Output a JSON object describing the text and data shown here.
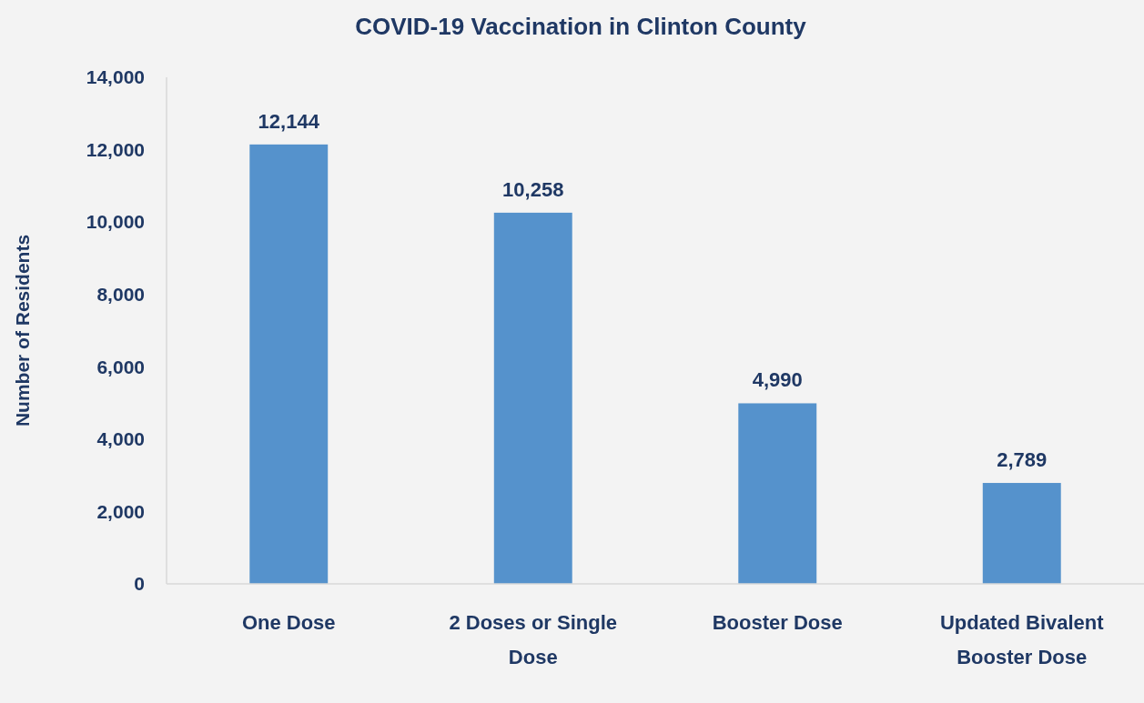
{
  "chart_data": {
    "type": "bar",
    "title": "COVID-19 Vaccination in Clinton County",
    "ylabel": "Number of Residents",
    "categories": [
      "One Dose",
      "2 Doses or Single Dose",
      "Booster Dose",
      "Updated Bivalent Booster Dose"
    ],
    "values": [
      12144,
      10258,
      4990,
      2789
    ],
    "value_labels": [
      "12,144",
      "10,258",
      "4,990",
      "2,789"
    ],
    "color": "#5592cc",
    "ylim": [
      0,
      14000
    ],
    "yticks": [
      0,
      {
        "value": 2000,
        "label": "2,000"
      },
      {
        "value": 4000,
        "label": "4,000"
      },
      {
        "value": 6000,
        "label": "6,000"
      },
      {
        "value": 8000,
        "label": "8,000"
      },
      {
        "value": 10000,
        "label": "10,000"
      },
      {
        "value": 12000,
        "label": "12,000"
      },
      {
        "value": 14000,
        "label": "14,000"
      }
    ],
    "grid": false
  }
}
